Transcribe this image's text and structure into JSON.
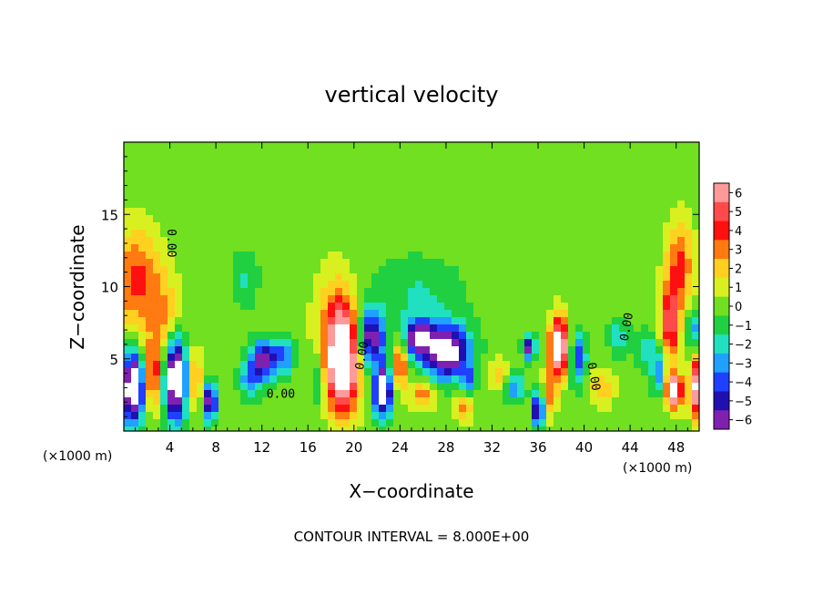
{
  "chart_data": {
    "type": "heatmap",
    "title": "vertical velocity",
    "xlabel": "X−coordinate",
    "ylabel": "Z−coordinate",
    "x_unit": "(×1000 m)",
    "x_unit_right": "(×1000 m)",
    "footer": "CONTOUR INTERVAL = 8.000E+00",
    "xlim": [
      0,
      50
    ],
    "ylim": [
      0,
      20
    ],
    "x_ticks": [
      {
        "v": 4,
        "label": "4"
      },
      {
        "v": 8,
        "label": "8"
      },
      {
        "v": 12,
        "label": "12"
      },
      {
        "v": 16,
        "label": "16"
      },
      {
        "v": 20,
        "label": "20"
      },
      {
        "v": 24,
        "label": "24"
      },
      {
        "v": 28,
        "label": "28"
      },
      {
        "v": 32,
        "label": "32"
      },
      {
        "v": 36,
        "label": "36"
      },
      {
        "v": 40,
        "label": "40"
      },
      {
        "v": 44,
        "label": "44"
      },
      {
        "v": 48,
        "label": "48"
      }
    ],
    "y_ticks": [
      {
        "v": 5,
        "label": "5"
      },
      {
        "v": 10,
        "label": "10"
      },
      {
        "v": 15,
        "label": "15"
      }
    ],
    "colorbar": {
      "min": -6,
      "max": 6,
      "labels": [
        "6",
        "5",
        "4",
        "3",
        "2",
        "1",
        "0",
        "−1",
        "−2",
        "−3",
        "−4",
        "−5",
        "−6"
      ],
      "colors": [
        "#ff9a9a",
        "#ff4a4a",
        "#ff1010",
        "#ff7a10",
        "#ffd020",
        "#d8f020",
        "#70e020",
        "#20d040",
        "#20e0c0",
        "#20a0ff",
        "#2040ff",
        "#2010b0",
        "#8020b0"
      ]
    },
    "contour_labels": [
      {
        "x": 12.4,
        "y": 2.3,
        "text": "0.00"
      },
      {
        "x": 3.8,
        "y": 14.0,
        "text": "0.00",
        "rotate": 90
      },
      {
        "x": 43.8,
        "y": 6.2,
        "text": "0.00",
        "rotate": -80
      },
      {
        "x": 20.8,
        "y": 4.2,
        "text": "0.00",
        "rotate": -80
      },
      {
        "x": 40.3,
        "y": 4.7,
        "text": "0.00",
        "rotate": 80
      }
    ],
    "features": [
      {
        "x": 0.8,
        "z": 3.0,
        "sx": 0.9,
        "sz": 2.4,
        "a": -9
      },
      {
        "x": 4.5,
        "z": 3.6,
        "sx": 0.9,
        "sz": 2.8,
        "a": -9
      },
      {
        "x": 7.5,
        "z": 2.0,
        "sx": 0.6,
        "sz": 1.3,
        "a": -6
      },
      {
        "x": 2.5,
        "z": 3.8,
        "sx": 0.7,
        "sz": 2.2,
        "a": 4
      },
      {
        "x": 6.2,
        "z": 3.6,
        "sx": 0.6,
        "sz": 2.0,
        "a": 3
      },
      {
        "x": 1.0,
        "z": 10.5,
        "sx": 2.2,
        "sz": 3.5,
        "a": 3.5
      },
      {
        "x": 3.5,
        "z": 7.5,
        "sx": 1.5,
        "sz": 3.0,
        "a": 2.2
      },
      {
        "x": 12.2,
        "z": 5.0,
        "sx": 1.2,
        "sz": 1.3,
        "a": -6
      },
      {
        "x": 11.0,
        "z": 3.5,
        "sx": 1.0,
        "sz": 1.2,
        "a": -3
      },
      {
        "x": 14.0,
        "z": 5.2,
        "sx": 0.8,
        "sz": 1.2,
        "a": -3
      },
      {
        "x": 10.5,
        "z": 10.5,
        "sx": 1.2,
        "sz": 2.0,
        "a": -1.5
      },
      {
        "x": 19.0,
        "z": 4.5,
        "sx": 1.3,
        "sz": 3.2,
        "a": 9
      },
      {
        "x": 18.5,
        "z": 7.5,
        "sx": 1.8,
        "sz": 3.5,
        "a": 3
      },
      {
        "x": 16.8,
        "z": 3.5,
        "sx": 0.6,
        "sz": 1.8,
        "a": -2
      },
      {
        "x": 21.5,
        "z": 6.5,
        "sx": 1.2,
        "sz": 1.8,
        "a": -6
      },
      {
        "x": 22.5,
        "z": 2.8,
        "sx": 0.8,
        "sz": 1.8,
        "a": -8
      },
      {
        "x": 24.0,
        "z": 4.5,
        "sx": 0.7,
        "sz": 1.8,
        "a": 4
      },
      {
        "x": 25.5,
        "z": 6.5,
        "sx": 1.2,
        "sz": 1.2,
        "a": -6
      },
      {
        "x": 28.0,
        "z": 5.5,
        "sx": 2.0,
        "sz": 1.8,
        "a": -8
      },
      {
        "x": 26.0,
        "z": 2.5,
        "sx": 1.0,
        "sz": 1.0,
        "a": 3
      },
      {
        "x": 29.5,
        "z": 1.5,
        "sx": 0.8,
        "sz": 0.8,
        "a": 3
      },
      {
        "x": 25.5,
        "z": 9.5,
        "sx": 4.0,
        "sz": 2.5,
        "a": -1.5
      },
      {
        "x": 30.0,
        "z": 3.5,
        "sx": 0.6,
        "sz": 1.0,
        "a": -3
      },
      {
        "x": 32.5,
        "z": 4.0,
        "sx": 0.8,
        "sz": 1.0,
        "a": 2
      },
      {
        "x": 34.0,
        "z": 3.0,
        "sx": 0.8,
        "sz": 1.0,
        "a": -3
      },
      {
        "x": 35.2,
        "z": 5.8,
        "sx": 0.5,
        "sz": 0.8,
        "a": -6
      },
      {
        "x": 36.0,
        "z": 1.5,
        "sx": 0.5,
        "sz": 1.2,
        "a": -6
      },
      {
        "x": 37.8,
        "z": 5.8,
        "sx": 0.8,
        "sz": 2.0,
        "a": 8
      },
      {
        "x": 37.0,
        "z": 2.5,
        "sx": 0.6,
        "sz": 1.5,
        "a": 3
      },
      {
        "x": 39.5,
        "z": 5.0,
        "sx": 0.7,
        "sz": 1.8,
        "a": -4
      },
      {
        "x": 41.5,
        "z": 3.0,
        "sx": 1.2,
        "sz": 1.3,
        "a": 2
      },
      {
        "x": 43.0,
        "z": 6.5,
        "sx": 0.9,
        "sz": 1.3,
        "a": -2
      },
      {
        "x": 45.5,
        "z": 5.5,
        "sx": 1.0,
        "sz": 1.5,
        "a": -2
      },
      {
        "x": 47.5,
        "z": 7.5,
        "sx": 0.8,
        "sz": 2.5,
        "a": 5
      },
      {
        "x": 48.3,
        "z": 11.5,
        "sx": 1.2,
        "sz": 3.0,
        "a": 3.5
      },
      {
        "x": 47.8,
        "z": 2.8,
        "sx": 0.7,
        "sz": 1.2,
        "a": 8
      },
      {
        "x": 49.8,
        "z": 3.0,
        "sx": 0.6,
        "sz": 2.0,
        "a": 7
      },
      {
        "x": 46.5,
        "z": 4.0,
        "sx": 0.6,
        "sz": 1.5,
        "a": -3
      },
      {
        "x": 49.5,
        "z": 7.0,
        "sx": 0.6,
        "sz": 1.5,
        "a": -3
      }
    ]
  }
}
